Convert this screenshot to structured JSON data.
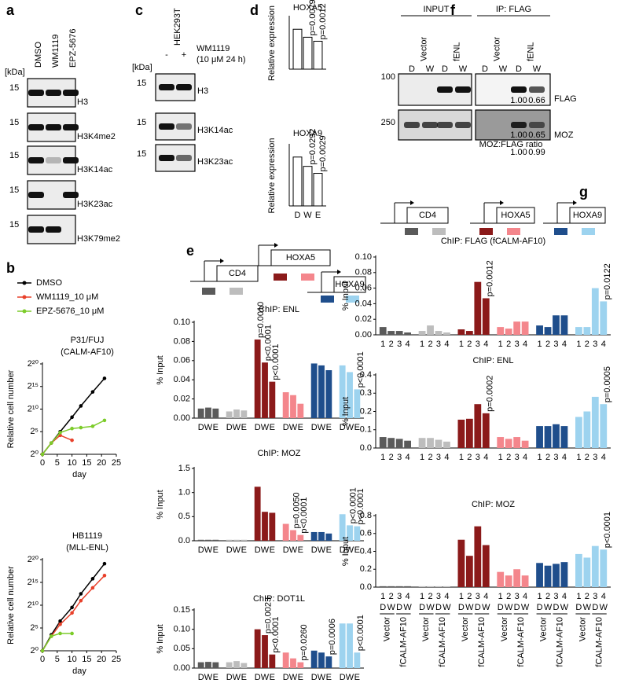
{
  "panels": {
    "a": {
      "label": "a",
      "kda": "[kDa]",
      "lanes": [
        "DMSO",
        "WM1119",
        "EPZ-5676"
      ],
      "rows": [
        {
          "mw": "15",
          "name": "H3"
        },
        {
          "mw": "15",
          "name": "H3K4me2"
        },
        {
          "mw": "15",
          "name": "H3K14ac"
        },
        {
          "mw": "15",
          "name": "H3K23ac"
        },
        {
          "mw": "15",
          "name": "H3K79me2"
        }
      ]
    },
    "b": {
      "label": "b"
    },
    "c": {
      "label": "c",
      "cell_line": "HEK293T",
      "lanes": [
        "-",
        "+"
      ],
      "treatment": [
        "WM1119",
        "(10 μM 24 h)"
      ],
      "kda": "[kDa]",
      "rows": [
        {
          "mw": "15",
          "name": "H3"
        },
        {
          "mw": "15",
          "name": "H3K14ac"
        },
        {
          "mw": "15",
          "name": "H3K23ac"
        }
      ]
    },
    "d": {
      "label": "d"
    },
    "e": {
      "label": "e",
      "genes": [
        "HOXA5",
        "CD4",
        "HOXA9"
      ]
    },
    "f": {
      "label": "f",
      "groups": [
        "INPUT",
        "IP: FLAG"
      ],
      "lanes": [
        "Vector",
        "fENL",
        "Vector",
        "fENL"
      ],
      "treatment": [
        "D",
        "W",
        "D",
        "W",
        "D",
        "W",
        "D",
        "W"
      ],
      "markers": [
        "100",
        "250"
      ],
      "blots": [
        "FLAG",
        "MOZ"
      ],
      "flag_ratios": [
        "1.00",
        "0.66"
      ],
      "moz_ratios": [
        "1.00",
        "0.65"
      ],
      "ratio_label": "MOZ:FLAG ratio",
      "ratio_values": [
        "1.00",
        "0.99"
      ]
    },
    "g": {
      "label": "g",
      "genes": [
        "CD4",
        "HOXA5",
        "HOXA9"
      ],
      "treatment": [
        "D",
        "W",
        "D",
        "W"
      ],
      "constructs": [
        "Vector",
        "fCALM-AF10"
      ]
    }
  },
  "chart_data": [
    {
      "type": "line",
      "title": "P31/FUJ",
      "subtitle": "(CALM-AF10)",
      "ylabel": "Relative cell number",
      "xlabel": "day",
      "xlim": [
        0,
        25
      ],
      "xticks": [
        0,
        5,
        10,
        15,
        20,
        25
      ],
      "ylim": [
        0,
        20
      ],
      "yticks": [
        {
          "value": 0,
          "label": "2⁰"
        },
        {
          "value": 5,
          "label": "2⁵"
        },
        {
          "value": 10,
          "label": "2¹⁰"
        },
        {
          "value": 15,
          "label": "2¹⁵"
        },
        {
          "value": 20,
          "label": "2²⁰"
        }
      ],
      "series": [
        {
          "name": "DMSO",
          "color": "#000000",
          "x": [
            0,
            3,
            6,
            10,
            13,
            17,
            21
          ],
          "values": [
            0,
            2.5,
            5,
            8.2,
            10.7,
            13.8,
            16.8
          ]
        },
        {
          "name": "WM1119_10 μM",
          "color": "#e8402a",
          "x": [
            0,
            3,
            6,
            10
          ],
          "values": [
            0,
            2.5,
            4.2,
            3.1
          ]
        },
        {
          "name": "EPZ-5676_10 μM",
          "color": "#7ccc2a",
          "x": [
            0,
            3,
            6,
            10,
            13,
            17,
            21
          ],
          "values": [
            0,
            2.5,
            4.8,
            5.7,
            5.9,
            6.2,
            7.5
          ]
        }
      ]
    },
    {
      "type": "line",
      "title": "HB1119",
      "subtitle": "(MLL-ENL)",
      "ylabel": "Relative cell number",
      "xlabel": "day",
      "xlim": [
        0,
        25
      ],
      "xticks": [
        0,
        5,
        10,
        15,
        20,
        25
      ],
      "ylim": [
        0,
        20
      ],
      "yticks": [
        {
          "value": 0,
          "label": "2⁰"
        },
        {
          "value": 5,
          "label": "2⁵"
        },
        {
          "value": 10,
          "label": "2¹⁰"
        },
        {
          "value": 15,
          "label": "2¹⁵"
        },
        {
          "value": 20,
          "label": "2²⁰"
        }
      ],
      "series": [
        {
          "color": "#000000",
          "x": [
            0,
            3,
            6,
            10,
            13,
            17,
            21
          ],
          "values": [
            0,
            3.5,
            6.5,
            9.5,
            12.5,
            15.8,
            19.1
          ]
        },
        {
          "color": "#e8402a",
          "x": [
            0,
            3,
            6,
            10,
            13,
            17,
            21
          ],
          "values": [
            0,
            3.2,
            5.8,
            8.3,
            11,
            13.8,
            16.5
          ]
        },
        {
          "color": "#7ccc2a",
          "x": [
            0,
            3,
            6,
            10
          ],
          "values": [
            0,
            3.2,
            3.8,
            3.8
          ]
        }
      ]
    },
    {
      "type": "bar",
      "title": "HOXA5",
      "ylabel": "Relative expression",
      "ylim": [
        0,
        1.3
      ],
      "groups": [
        {
          "color": "#ffffff",
          "stroke": "#000000",
          "values": [
            1.0,
            0.8,
            0.7
          ],
          "p_labels": [
            null,
            "p=0.0079",
            "p=0.0012"
          ]
        }
      ]
    },
    {
      "type": "bar",
      "title": "HOXA9",
      "ylabel": "Relative expression",
      "ylim": [
        0,
        1.3
      ],
      "groups": [
        {
          "color": "#ffffff",
          "stroke": "#000000",
          "categories": [
            "D",
            "W",
            "E"
          ],
          "values": [
            1.05,
            0.85,
            0.7
          ],
          "p_labels": [
            null,
            "p=0.0292",
            "p=0.0029"
          ]
        }
      ]
    },
    {
      "type": "bar",
      "title": "ChIP: ENL",
      "ylabel": "% Input",
      "ylim": [
        0,
        0.1
      ],
      "yticks": [
        {
          "value": 0,
          "label": "0.00"
        },
        0.02,
        0.04,
        0.06,
        0.08,
        {
          "value": 0.1,
          "label": "0.10"
        }
      ],
      "groups": [
        {
          "color": "#5a5a5a",
          "categories": [
            "D",
            "W",
            "E"
          ],
          "values": [
            0.01,
            0.011,
            0.01
          ]
        },
        {
          "color": "#bdbdbd",
          "categories": [
            "D",
            "W",
            "E"
          ],
          "values": [
            0.007,
            0.009,
            0.008
          ]
        },
        {
          "color": "#8b1a1a",
          "categories": [
            "D",
            "W",
            "E"
          ],
          "values": [
            0.082,
            0.058,
            0.038
          ],
          "p_labels": [
            "p=0.0010",
            "p<0.0001",
            "p<0.0001"
          ]
        },
        {
          "color": "#f4868c",
          "categories": [
            "D",
            "W",
            "E"
          ],
          "values": [
            0.027,
            0.024,
            0.015
          ]
        },
        {
          "color": "#1f4e8c",
          "categories": [
            "D",
            "W",
            "E"
          ],
          "values": [
            0.057,
            0.055,
            0.05
          ]
        },
        {
          "color": "#9dd3ef",
          "categories": [
            "D",
            "W",
            "E"
          ],
          "values": [
            0.055,
            0.048,
            0.03
          ],
          "p_labels": [
            null,
            null,
            "p<0.0001"
          ]
        }
      ]
    },
    {
      "type": "bar",
      "title": "ChIP: MOZ",
      "ylabel": "% Input",
      "ylim": [
        0,
        1.5
      ],
      "yticks": [
        {
          "value": 0,
          "label": "0.0"
        },
        0.5,
        {
          "value": 1,
          "label": "1.0"
        },
        1.5
      ],
      "groups": [
        {
          "color": "#5a5a5a",
          "categories": [
            "D",
            "W",
            "E"
          ],
          "values": [
            0.02,
            0.02,
            0.02
          ]
        },
        {
          "color": "#bdbdbd",
          "categories": [
            "D",
            "W",
            "E"
          ],
          "values": [
            0.02,
            0.02,
            0.02
          ]
        },
        {
          "color": "#8b1a1a",
          "categories": [
            "D",
            "W",
            "E"
          ],
          "values": [
            1.12,
            0.6,
            0.58
          ]
        },
        {
          "color": "#f4868c",
          "categories": [
            "D",
            "W",
            "E"
          ],
          "values": [
            0.35,
            0.22,
            0.12
          ],
          "p_labels": [
            null,
            "p=0.0050",
            "p<0.0001"
          ]
        },
        {
          "color": "#1f4e8c",
          "categories": [
            "D",
            "W",
            "E"
          ],
          "values": [
            0.18,
            0.18,
            0.15
          ]
        },
        {
          "color": "#9dd3ef",
          "categories": [
            "D",
            "W",
            "E"
          ],
          "values": [
            0.55,
            0.32,
            0.3
          ],
          "p_labels": [
            null,
            "p<0.0001",
            "p<0.0001"
          ]
        }
      ]
    },
    {
      "type": "bar",
      "title": "ChIP: DOT1L",
      "ylabel": "% Input",
      "ylim": [
        0,
        0.15
      ],
      "yticks": [
        {
          "value": 0,
          "label": "0.00"
        },
        0.05,
        {
          "value": 0.1,
          "label": "0.10"
        },
        0.15
      ],
      "groups": [
        {
          "color": "#5a5a5a",
          "categories": [
            "D",
            "W",
            "E"
          ],
          "values": [
            0.015,
            0.016,
            0.015
          ]
        },
        {
          "color": "#bdbdbd",
          "categories": [
            "D",
            "W",
            "E"
          ],
          "values": [
            0.015,
            0.018,
            0.013
          ]
        },
        {
          "color": "#8b1a1a",
          "categories": [
            "D",
            "W",
            "E"
          ],
          "values": [
            0.1,
            0.085,
            0.035
          ],
          "p_labels": [
            null,
            "p=0.0023",
            "p<0.0001"
          ]
        },
        {
          "color": "#f4868c",
          "categories": [
            "D",
            "W",
            "E"
          ],
          "values": [
            0.04,
            0.025,
            0.015
          ],
          "p_labels": [
            null,
            null,
            "p=0.0260"
          ]
        },
        {
          "color": "#1f4e8c",
          "categories": [
            "D",
            "W",
            "E"
          ],
          "values": [
            0.045,
            0.04,
            0.03
          ],
          "p_labels": [
            null,
            null,
            "p=0.0006"
          ]
        },
        {
          "color": "#9dd3ef",
          "categories": [
            "D",
            "W",
            "E"
          ],
          "values": [
            0.115,
            0.115,
            0.04
          ],
          "p_labels": [
            null,
            null,
            "p<0.0001"
          ]
        }
      ]
    },
    {
      "type": "bar",
      "title": "ChIP: FLAG (fCALM-AF10)",
      "ylabel": "% Input",
      "ylim": [
        0,
        0.1
      ],
      "yticks": [
        {
          "value": 0,
          "label": "0.00"
        },
        0.02,
        0.04,
        0.06,
        0.08,
        {
          "value": 0.1,
          "label": "0.10"
        }
      ],
      "groups": [
        {
          "color": "#5a5a5a",
          "categories": [
            "1",
            "2",
            "3",
            "4"
          ],
          "values": [
            0.01,
            0.005,
            0.005,
            0.003
          ]
        },
        {
          "color": "#bdbdbd",
          "categories": [
            "1",
            "2",
            "3",
            "4"
          ],
          "values": [
            0.005,
            0.012,
            0.005,
            0.003
          ]
        },
        {
          "color": "#8b1a1a",
          "categories": [
            "1",
            "2",
            "3",
            "4"
          ],
          "values": [
            0.007,
            0.005,
            0.068,
            0.047
          ],
          "p_labels": [
            null,
            null,
            null,
            "p=0.0012"
          ]
        },
        {
          "color": "#f4868c",
          "categories": [
            "1",
            "2",
            "3",
            "4"
          ],
          "values": [
            0.01,
            0.008,
            0.017,
            0.017
          ]
        },
        {
          "color": "#1f4e8c",
          "categories": [
            "1",
            "2",
            "3",
            "4"
          ],
          "values": [
            0.012,
            0.01,
            0.025,
            0.025
          ]
        },
        {
          "color": "#9dd3ef",
          "categories": [
            "1",
            "2",
            "3",
            "4"
          ],
          "values": [
            0.01,
            0.01,
            0.06,
            0.043
          ],
          "p_labels": [
            null,
            null,
            null,
            "p=0.0122"
          ]
        }
      ]
    },
    {
      "type": "bar",
      "title": "ChIP: ENL",
      "ylabel": "% Input",
      "ylim": [
        0,
        0.4
      ],
      "yticks": [
        {
          "value": 0,
          "label": "0.0"
        },
        0.1,
        0.2,
        0.3,
        0.4
      ],
      "groups": [
        {
          "color": "#5a5a5a",
          "categories": [
            "1",
            "2",
            "3",
            "4"
          ],
          "values": [
            0.06,
            0.055,
            0.05,
            0.04
          ]
        },
        {
          "color": "#bdbdbd",
          "categories": [
            "1",
            "2",
            "3",
            "4"
          ],
          "values": [
            0.055,
            0.055,
            0.045,
            0.035
          ]
        },
        {
          "color": "#8b1a1a",
          "categories": [
            "1",
            "2",
            "3",
            "4"
          ],
          "values": [
            0.155,
            0.16,
            0.24,
            0.19
          ],
          "p_labels": [
            null,
            null,
            null,
            "p=0.0002"
          ]
        },
        {
          "color": "#f4868c",
          "categories": [
            "1",
            "2",
            "3",
            "4"
          ],
          "values": [
            0.06,
            0.05,
            0.06,
            0.04
          ]
        },
        {
          "color": "#1f4e8c",
          "categories": [
            "1",
            "2",
            "3",
            "4"
          ],
          "values": [
            0.12,
            0.12,
            0.13,
            0.12
          ]
        },
        {
          "color": "#9dd3ef",
          "categories": [
            "1",
            "2",
            "3",
            "4"
          ],
          "values": [
            0.17,
            0.2,
            0.28,
            0.24
          ],
          "p_labels": [
            null,
            null,
            null,
            "p=0.0005"
          ]
        }
      ]
    },
    {
      "type": "bar",
      "title": "ChIP: MOZ",
      "ylabel": "% Input",
      "ylim": [
        0,
        0.8
      ],
      "yticks": [
        {
          "value": 0,
          "label": "0.0"
        },
        0.2,
        0.4,
        0.6,
        0.8
      ],
      "groups": [
        {
          "color": "#5a5a5a",
          "categories": [
            "1",
            "2",
            "3",
            "4"
          ],
          "values": [
            0.01,
            0.01,
            0.01,
            0.01
          ]
        },
        {
          "color": "#bdbdbd",
          "categories": [
            "1",
            "2",
            "3",
            "4"
          ],
          "values": [
            0.01,
            0.01,
            0.01,
            0.01
          ]
        },
        {
          "color": "#8b1a1a",
          "categories": [
            "1",
            "2",
            "3",
            "4"
          ],
          "values": [
            0.53,
            0.35,
            0.68,
            0.47
          ]
        },
        {
          "color": "#f4868c",
          "categories": [
            "1",
            "2",
            "3",
            "4"
          ],
          "values": [
            0.17,
            0.13,
            0.2,
            0.13
          ]
        },
        {
          "color": "#1f4e8c",
          "categories": [
            "1",
            "2",
            "3",
            "4"
          ],
          "values": [
            0.27,
            0.24,
            0.26,
            0.28
          ]
        },
        {
          "color": "#9dd3ef",
          "categories": [
            "1",
            "2",
            "3",
            "4"
          ],
          "values": [
            0.37,
            0.33,
            0.46,
            0.42
          ],
          "p_labels": [
            null,
            null,
            null,
            "p<0.0001"
          ]
        }
      ]
    }
  ]
}
